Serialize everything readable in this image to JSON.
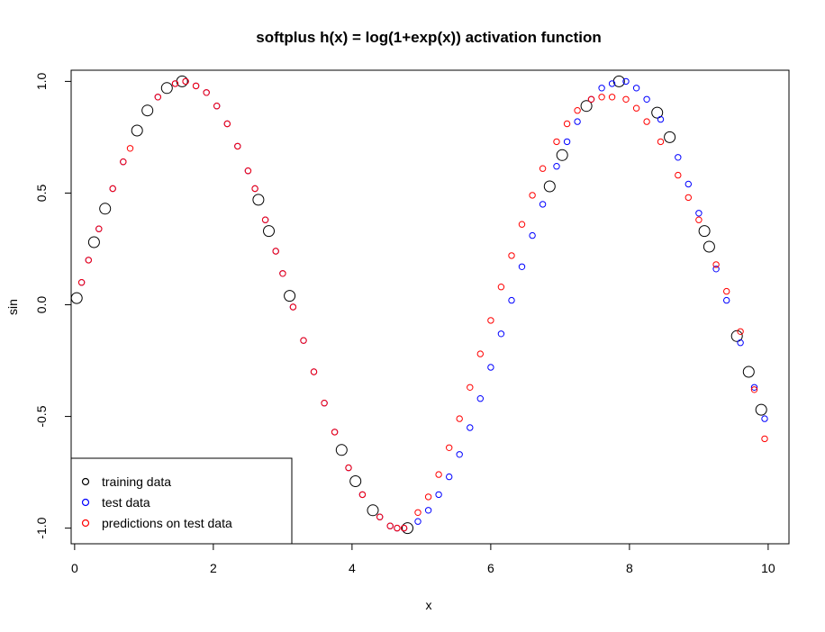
{
  "chart_data": {
    "type": "scatter",
    "title": "softplus h(x) = log(1+exp(x)) activation function",
    "xlabel": "x",
    "ylabel": "sin",
    "xlim": [
      -0.05,
      10.3
    ],
    "ylim": [
      -1.07,
      1.05
    ],
    "xticks": [
      "0",
      "2",
      "4",
      "6",
      "8",
      "10"
    ],
    "yticks": [
      "-1.0",
      "-0.5",
      "0.0",
      "0.5",
      "1.0"
    ],
    "legend_position": "bottom-left",
    "series": [
      {
        "name": "training data",
        "color": "#000000",
        "x": [
          0.03,
          0.28,
          0.44,
          0.9,
          1.05,
          1.33,
          1.55,
          2.65,
          2.8,
          3.1,
          3.85,
          4.05,
          4.3,
          4.8,
          6.85,
          7.03,
          7.38,
          7.85,
          8.4,
          8.58,
          9.08,
          9.15,
          9.55,
          9.72,
          9.9
        ],
        "y": [
          0.03,
          0.28,
          0.43,
          0.78,
          0.87,
          0.97,
          1.0,
          0.47,
          0.33,
          0.04,
          -0.65,
          -0.79,
          -0.92,
          -1.0,
          0.53,
          0.67,
          0.89,
          1.0,
          0.86,
          0.75,
          0.33,
          0.26,
          -0.14,
          -0.3,
          -0.47
        ]
      },
      {
        "name": "test data",
        "color": "#0000ff",
        "x": [
          0.1,
          0.2,
          0.35,
          0.55,
          0.7,
          1.2,
          1.45,
          1.6,
          1.75,
          1.9,
          2.05,
          2.2,
          2.35,
          2.5,
          2.6,
          2.75,
          2.9,
          3.0,
          3.15,
          3.3,
          3.45,
          3.6,
          3.75,
          3.95,
          4.15,
          4.4,
          4.55,
          4.65,
          4.75,
          4.95,
          5.1,
          5.25,
          5.4,
          5.55,
          5.7,
          5.85,
          6.0,
          6.15,
          6.3,
          6.45,
          6.6,
          6.75,
          6.95,
          7.1,
          7.25,
          7.45,
          7.6,
          7.75,
          7.95,
          8.1,
          8.25,
          8.45,
          8.7,
          8.85,
          9.0,
          9.25,
          9.4,
          9.6,
          9.8,
          9.95
        ],
        "y": [
          0.1,
          0.2,
          0.34,
          0.52,
          0.64,
          0.93,
          0.99,
          1.0,
          0.98,
          0.95,
          0.89,
          0.81,
          0.71,
          0.6,
          0.52,
          0.38,
          0.24,
          0.14,
          -0.01,
          -0.16,
          -0.3,
          -0.44,
          -0.57,
          -0.73,
          -0.85,
          -0.95,
          -0.99,
          -1.0,
          -1.0,
          -0.97,
          -0.92,
          -0.85,
          -0.77,
          -0.67,
          -0.55,
          -0.42,
          -0.28,
          -0.13,
          0.02,
          0.17,
          0.31,
          0.45,
          0.62,
          0.73,
          0.82,
          0.92,
          0.97,
          0.99,
          1.0,
          0.97,
          0.92,
          0.83,
          0.66,
          0.54,
          0.41,
          0.16,
          0.02,
          -0.17,
          -0.37,
          -0.51
        ]
      },
      {
        "name": "predictions on test data",
        "color": "#ff0000",
        "x": [
          0.1,
          0.2,
          0.35,
          0.55,
          0.7,
          0.8,
          1.2,
          1.45,
          1.6,
          1.75,
          1.9,
          2.05,
          2.2,
          2.35,
          2.5,
          2.6,
          2.75,
          2.9,
          3.0,
          3.15,
          3.3,
          3.45,
          3.6,
          3.75,
          3.95,
          4.15,
          4.4,
          4.55,
          4.65,
          4.75,
          4.95,
          5.1,
          5.25,
          5.4,
          5.55,
          5.7,
          5.85,
          6.0,
          6.15,
          6.3,
          6.45,
          6.6,
          6.75,
          6.95,
          7.1,
          7.25,
          7.45,
          7.6,
          7.75,
          7.95,
          8.1,
          8.25,
          8.45,
          8.7,
          8.85,
          9.0,
          9.25,
          9.4,
          9.6,
          9.8,
          9.95
        ],
        "y": [
          0.1,
          0.2,
          0.34,
          0.52,
          0.64,
          0.7,
          0.93,
          0.99,
          1.0,
          0.98,
          0.95,
          0.89,
          0.81,
          0.71,
          0.6,
          0.52,
          0.38,
          0.24,
          0.14,
          -0.01,
          -0.16,
          -0.3,
          -0.44,
          -0.57,
          -0.73,
          -0.85,
          -0.95,
          -0.99,
          -1.0,
          -1.0,
          -0.93,
          -0.86,
          -0.76,
          -0.64,
          -0.51,
          -0.37,
          -0.22,
          -0.07,
          0.08,
          0.22,
          0.36,
          0.49,
          0.61,
          0.73,
          0.81,
          0.87,
          0.92,
          0.93,
          0.93,
          0.92,
          0.88,
          0.82,
          0.73,
          0.58,
          0.48,
          0.38,
          0.18,
          0.06,
          -0.12,
          -0.38,
          -0.6
        ]
      }
    ]
  }
}
